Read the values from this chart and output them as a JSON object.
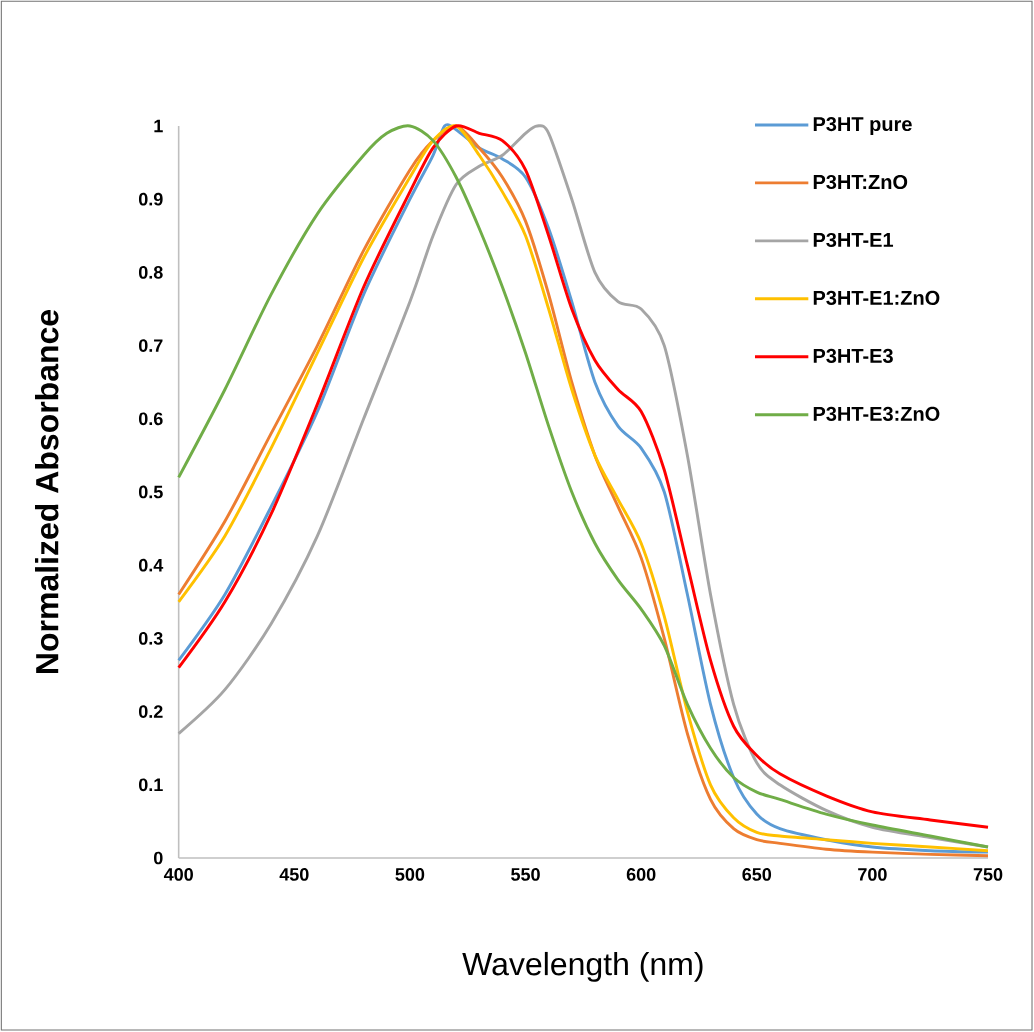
{
  "chart_data": {
    "type": "line",
    "xlabel": "Wavelength (nm)",
    "ylabel": "Normalized Absorbance",
    "xlim": [
      400,
      750
    ],
    "ylim": [
      0,
      1
    ],
    "xticks": [
      400,
      450,
      500,
      550,
      600,
      650,
      700,
      750
    ],
    "yticks": [
      0,
      0.1,
      0.2,
      0.3,
      0.4,
      0.5,
      0.6,
      0.7,
      0.8,
      0.9,
      1
    ],
    "legend": "top right",
    "marker": "none",
    "line_style": "solid",
    "series": [
      {
        "name": "P3HT pure",
        "color": "#5b9bd5",
        "x": [
          400,
          420,
          440,
          460,
          480,
          500,
          510,
          515,
          520,
          530,
          540,
          550,
          560,
          570,
          580,
          590,
          600,
          610,
          620,
          630,
          640,
          650,
          660,
          680,
          700,
          725,
          750
        ],
        "values": [
          0.27,
          0.36,
          0.48,
          0.61,
          0.77,
          0.9,
          0.96,
          1.0,
          0.995,
          0.97,
          0.955,
          0.93,
          0.86,
          0.76,
          0.65,
          0.59,
          0.56,
          0.5,
          0.36,
          0.21,
          0.11,
          0.06,
          0.04,
          0.025,
          0.015,
          0.01,
          0.008
        ]
      },
      {
        "name": "P3HT:ZnO",
        "color": "#ed7d31",
        "x": [
          400,
          420,
          440,
          460,
          480,
          500,
          510,
          520,
          530,
          540,
          550,
          560,
          570,
          580,
          590,
          600,
          610,
          620,
          630,
          640,
          650,
          660,
          680,
          700,
          725,
          750
        ],
        "values": [
          0.36,
          0.46,
          0.58,
          0.7,
          0.83,
          0.94,
          0.98,
          1.0,
          0.97,
          0.93,
          0.87,
          0.77,
          0.65,
          0.55,
          0.48,
          0.41,
          0.3,
          0.17,
          0.08,
          0.04,
          0.025,
          0.02,
          0.012,
          0.008,
          0.005,
          0.003
        ]
      },
      {
        "name": "P3HT-E1",
        "color": "#a5a5a5",
        "x": [
          400,
          420,
          440,
          460,
          480,
          500,
          510,
          520,
          530,
          540,
          550,
          555,
          560,
          570,
          580,
          590,
          600,
          610,
          620,
          630,
          640,
          650,
          660,
          680,
          700,
          725,
          750
        ],
        "values": [
          0.17,
          0.23,
          0.32,
          0.44,
          0.6,
          0.76,
          0.85,
          0.92,
          0.945,
          0.96,
          0.99,
          1.0,
          0.99,
          0.9,
          0.8,
          0.76,
          0.75,
          0.7,
          0.55,
          0.36,
          0.21,
          0.13,
          0.1,
          0.065,
          0.042,
          0.028,
          0.015
        ]
      },
      {
        "name": "P3HT-E1:ZnO",
        "color": "#ffc000",
        "x": [
          400,
          420,
          440,
          460,
          480,
          500,
          510,
          520,
          530,
          540,
          550,
          560,
          570,
          580,
          590,
          600,
          610,
          620,
          630,
          640,
          650,
          660,
          680,
          700,
          725,
          750
        ],
        "values": [
          0.35,
          0.44,
          0.56,
          0.69,
          0.82,
          0.93,
          0.98,
          1.0,
          0.96,
          0.91,
          0.85,
          0.75,
          0.64,
          0.55,
          0.49,
          0.43,
          0.33,
          0.2,
          0.1,
          0.055,
          0.035,
          0.03,
          0.025,
          0.02,
          0.015,
          0.01
        ]
      },
      {
        "name": "P3HT-E3",
        "color": "#ff0000",
        "x": [
          400,
          420,
          440,
          460,
          480,
          500,
          510,
          520,
          530,
          540,
          550,
          560,
          570,
          580,
          590,
          600,
          610,
          620,
          630,
          640,
          650,
          660,
          680,
          700,
          725,
          750
        ],
        "values": [
          0.26,
          0.35,
          0.47,
          0.62,
          0.78,
          0.91,
          0.97,
          1.0,
          0.99,
          0.98,
          0.94,
          0.85,
          0.75,
          0.68,
          0.64,
          0.61,
          0.53,
          0.4,
          0.27,
          0.18,
          0.14,
          0.115,
          0.085,
          0.063,
          0.052,
          0.042
        ]
      },
      {
        "name": "P3HT-E3:ZnO",
        "color": "#70ad47",
        "x": [
          400,
          420,
          440,
          460,
          480,
          490,
          500,
          510,
          520,
          530,
          540,
          550,
          560,
          570,
          580,
          590,
          600,
          610,
          620,
          630,
          640,
          650,
          660,
          680,
          700,
          725,
          750
        ],
        "values": [
          0.52,
          0.64,
          0.77,
          0.88,
          0.96,
          0.99,
          1.0,
          0.98,
          0.93,
          0.86,
          0.78,
          0.69,
          0.59,
          0.5,
          0.43,
          0.38,
          0.34,
          0.29,
          0.21,
          0.15,
          0.11,
          0.09,
          0.08,
          0.06,
          0.045,
          0.03,
          0.015
        ]
      }
    ]
  }
}
